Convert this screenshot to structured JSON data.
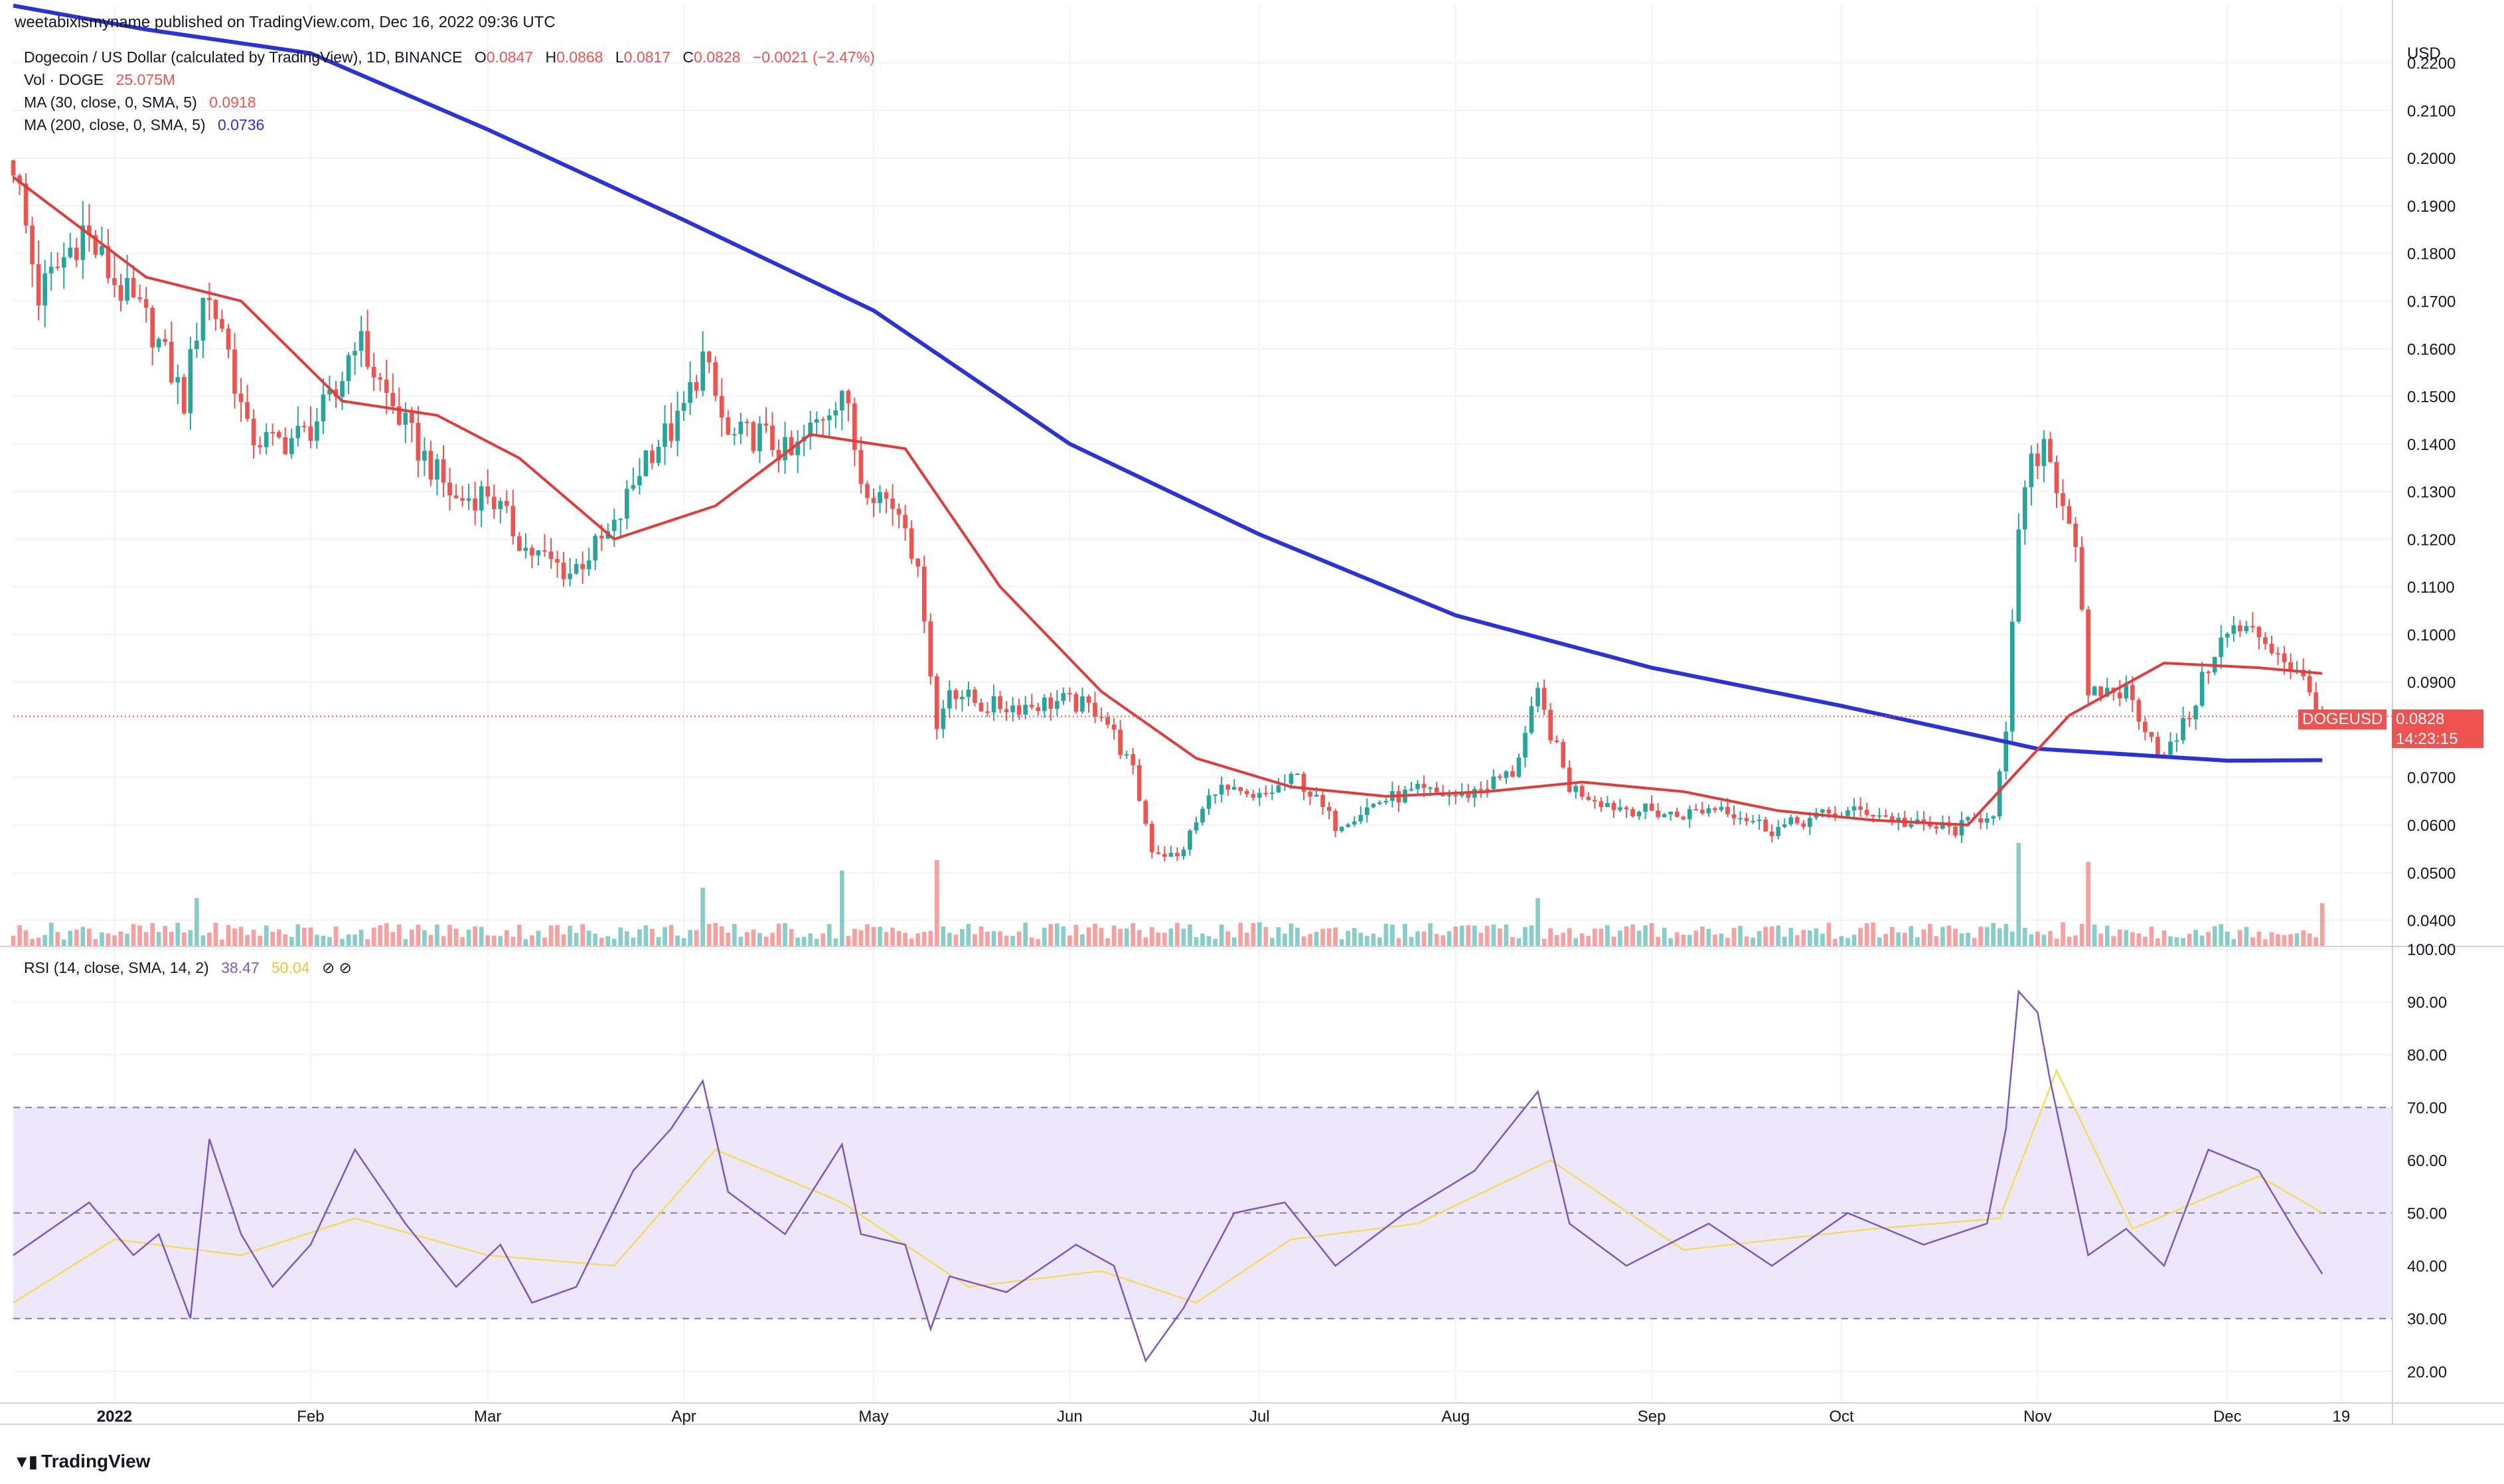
{
  "header": {
    "publish_line": "weetabixismyname published on TradingView.com, Dec 16, 2022 09:36 UTC",
    "symbol": "Dogecoin / US Dollar (calculated by TradingView), 1D, BINANCE",
    "ohlc": {
      "o_label": "O",
      "o": "0.0847",
      "h_label": "H",
      "h": "0.0868",
      "l_label": "L",
      "l": "0.0817",
      "c_label": "C",
      "c": "0.0828",
      "change": "−0.0021 (−2.47%)"
    },
    "vol_label": "Vol · DOGE",
    "vol_value": "25.075M",
    "ma30_label": "MA (30, close, 0, SMA, 5)",
    "ma30_value": "0.0918",
    "ma200_label": "MA (200, close, 0, SMA, 5)",
    "ma200_value": "0.0736",
    "rsi_label": "RSI (14, close, SMA, 14, 2)",
    "rsi_value": "38.47",
    "rsi_ma_value": "50.04",
    "rsi_icons": "⊘ ⊘"
  },
  "price_badges": {
    "ticker": "DOGEUSD",
    "last": "0.0828",
    "countdown": "14:23:15"
  },
  "currency": "USD",
  "brand": "TradingView",
  "colors": {
    "up": "#26a69a",
    "down": "#ef5350",
    "ma30": "#e03c3c",
    "ma200": "#2b33d6",
    "rsi": "#7e57c2",
    "rsi_ma": "#f5dc5a",
    "rsi_band": "#ede7fb"
  },
  "chart_data": [
    {
      "type": "candlestick",
      "title": "Dogecoin / US Dollar (calculated by TradingView), 1D, BINANCE",
      "x_ticks": [
        "2022",
        "Feb",
        "Mar",
        "Apr",
        "May",
        "Jun",
        "Jul",
        "Aug",
        "Sep",
        "Oct",
        "Nov",
        "Dec",
        "19"
      ],
      "y_ticks": [
        "0.2200",
        "0.2100",
        "0.2000",
        "0.1900",
        "0.1800",
        "0.1700",
        "0.1600",
        "0.1500",
        "0.1400",
        "0.1300",
        "0.1200",
        "0.1100",
        "0.1000",
        "0.0900",
        "0.0700",
        "0.0600",
        "0.0500",
        "0.0400"
      ],
      "ylim": [
        0.0345,
        0.2265
      ],
      "close_series": [
        {
          "date": "2021-12-16",
          "close": 0.1995
        },
        {
          "date": "2021-12-20",
          "close": 0.171
        },
        {
          "date": "2021-12-27",
          "close": 0.185
        },
        {
          "date": "2022-01-01",
          "close": 0.174
        },
        {
          "date": "2022-01-07",
          "close": 0.164
        },
        {
          "date": "2022-01-12",
          "close": 0.149
        },
        {
          "date": "2022-01-15",
          "close": 0.172
        },
        {
          "date": "2022-01-18",
          "close": 0.165
        },
        {
          "date": "2022-01-22",
          "close": 0.142
        },
        {
          "date": "2022-01-26",
          "close": 0.14
        },
        {
          "date": "2022-01-31",
          "close": 0.142
        },
        {
          "date": "2022-02-05",
          "close": 0.15
        },
        {
          "date": "2022-02-08",
          "close": 0.163
        },
        {
          "date": "2022-02-13",
          "close": 0.15
        },
        {
          "date": "2022-02-18",
          "close": 0.139
        },
        {
          "date": "2022-02-24",
          "close": 0.128
        },
        {
          "date": "2022-03-01",
          "close": 0.13
        },
        {
          "date": "2022-03-07",
          "close": 0.118
        },
        {
          "date": "2022-03-14",
          "close": 0.113
        },
        {
          "date": "2022-03-21",
          "close": 0.122
        },
        {
          "date": "2022-03-26",
          "close": 0.138
        },
        {
          "date": "2022-03-31",
          "close": 0.144
        },
        {
          "date": "2022-04-04",
          "close": 0.158
        },
        {
          "date": "2022-04-08",
          "close": 0.141
        },
        {
          "date": "2022-04-13",
          "close": 0.142
        },
        {
          "date": "2022-04-18",
          "close": 0.137
        },
        {
          "date": "2022-04-26",
          "close": 0.152
        },
        {
          "date": "2022-04-29",
          "close": 0.133
        },
        {
          "date": "2022-05-06",
          "close": 0.125
        },
        {
          "date": "2022-05-09",
          "close": 0.105
        },
        {
          "date": "2022-05-11",
          "close": 0.08
        },
        {
          "date": "2022-05-13",
          "close": 0.089
        },
        {
          "date": "2022-05-18",
          "close": 0.085
        },
        {
          "date": "2022-05-24",
          "close": 0.085
        },
        {
          "date": "2022-05-31",
          "close": 0.086
        },
        {
          "date": "2022-06-06",
          "close": 0.084
        },
        {
          "date": "2022-06-11",
          "close": 0.071
        },
        {
          "date": "2022-06-14",
          "close": 0.055
        },
        {
          "date": "2022-06-18",
          "close": 0.053
        },
        {
          "date": "2022-06-24",
          "close": 0.068
        },
        {
          "date": "2022-06-30",
          "close": 0.065
        },
        {
          "date": "2022-07-07",
          "close": 0.07
        },
        {
          "date": "2022-07-13",
          "close": 0.06
        },
        {
          "date": "2022-07-20",
          "close": 0.065
        },
        {
          "date": "2022-07-26",
          "close": 0.067
        },
        {
          "date": "2022-08-02",
          "close": 0.066
        },
        {
          "date": "2022-08-10",
          "close": 0.071
        },
        {
          "date": "2022-08-14",
          "close": 0.087
        },
        {
          "date": "2022-08-19",
          "close": 0.068
        },
        {
          "date": "2022-08-26",
          "close": 0.064
        },
        {
          "date": "2022-09-05",
          "close": 0.062
        },
        {
          "date": "2022-09-12",
          "close": 0.064
        },
        {
          "date": "2022-09-20",
          "close": 0.059
        },
        {
          "date": "2022-09-28",
          "close": 0.062
        },
        {
          "date": "2022-10-05",
          "close": 0.063
        },
        {
          "date": "2022-10-12",
          "close": 0.06
        },
        {
          "date": "2022-10-19",
          "close": 0.059
        },
        {
          "date": "2022-10-25",
          "close": 0.063
        },
        {
          "date": "2022-10-27",
          "close": 0.078
        },
        {
          "date": "2022-10-29",
          "close": 0.123
        },
        {
          "date": "2022-10-31",
          "close": 0.135
        },
        {
          "date": "2022-11-02",
          "close": 0.141
        },
        {
          "date": "2022-11-05",
          "close": 0.128
        },
        {
          "date": "2022-11-07",
          "close": 0.12
        },
        {
          "date": "2022-11-09",
          "close": 0.086
        },
        {
          "date": "2022-11-11",
          "close": 0.088
        },
        {
          "date": "2022-11-15",
          "close": 0.088
        },
        {
          "date": "2022-11-21",
          "close": 0.074
        },
        {
          "date": "2022-11-25",
          "close": 0.083
        },
        {
          "date": "2022-11-29",
          "close": 0.097
        },
        {
          "date": "2022-12-02",
          "close": 0.101
        },
        {
          "date": "2022-12-06",
          "close": 0.1
        },
        {
          "date": "2022-12-10",
          "close": 0.095
        },
        {
          "date": "2022-12-13",
          "close": 0.09
        },
        {
          "date": "2022-12-16",
          "close": 0.0828
        }
      ],
      "ma30": [
        {
          "date": "2021-12-16",
          "value": 0.196
        },
        {
          "date": "2022-01-06",
          "value": 0.175
        },
        {
          "date": "2022-01-21",
          "value": 0.17
        },
        {
          "date": "2022-02-06",
          "value": 0.149
        },
        {
          "date": "2022-02-21",
          "value": 0.146
        },
        {
          "date": "2022-03-06",
          "value": 0.137
        },
        {
          "date": "2022-03-21",
          "value": 0.12
        },
        {
          "date": "2022-04-06",
          "value": 0.127
        },
        {
          "date": "2022-04-21",
          "value": 0.142
        },
        {
          "date": "2022-05-06",
          "value": 0.139
        },
        {
          "date": "2022-05-21",
          "value": 0.11
        },
        {
          "date": "2022-06-06",
          "value": 0.088
        },
        {
          "date": "2022-06-21",
          "value": 0.074
        },
        {
          "date": "2022-07-06",
          "value": 0.068
        },
        {
          "date": "2022-07-21",
          "value": 0.066
        },
        {
          "date": "2022-08-06",
          "value": 0.067
        },
        {
          "date": "2022-08-21",
          "value": 0.069
        },
        {
          "date": "2022-09-06",
          "value": 0.067
        },
        {
          "date": "2022-09-21",
          "value": 0.063
        },
        {
          "date": "2022-10-06",
          "value": 0.061
        },
        {
          "date": "2022-10-21",
          "value": 0.06
        },
        {
          "date": "2022-11-06",
          "value": 0.083
        },
        {
          "date": "2022-11-21",
          "value": 0.094
        },
        {
          "date": "2022-12-06",
          "value": 0.093
        },
        {
          "date": "2022-12-16",
          "value": 0.0918
        }
      ],
      "ma200": [
        {
          "date": "2021-12-16",
          "value": 0.232
        },
        {
          "date": "2022-01-06",
          "value": 0.227
        },
        {
          "date": "2022-02-01",
          "value": 0.222
        },
        {
          "date": "2022-03-01",
          "value": 0.206
        },
        {
          "date": "2022-04-01",
          "value": 0.187
        },
        {
          "date": "2022-05-01",
          "value": 0.168
        },
        {
          "date": "2022-06-01",
          "value": 0.14
        },
        {
          "date": "2022-07-01",
          "value": 0.121
        },
        {
          "date": "2022-08-01",
          "value": 0.104
        },
        {
          "date": "2022-09-01",
          "value": 0.093
        },
        {
          "date": "2022-10-01",
          "value": 0.085
        },
        {
          "date": "2022-11-01",
          "value": 0.076
        },
        {
          "date": "2022-12-01",
          "value": 0.0735
        },
        {
          "date": "2022-12-16",
          "value": 0.0736
        }
      ],
      "volume_M_approx": [
        {
          "date": "2022-01-14",
          "value": 28
        },
        {
          "date": "2022-04-04",
          "value": 34
        },
        {
          "date": "2022-04-26",
          "value": 44
        },
        {
          "date": "2022-05-11",
          "value": 50
        },
        {
          "date": "2022-08-14",
          "value": 28
        },
        {
          "date": "2022-10-29",
          "value": 60
        },
        {
          "date": "2022-11-09",
          "value": 49
        },
        {
          "date": "2022-12-16",
          "value": 25.075
        }
      ]
    },
    {
      "type": "line",
      "title": "RSI (14, close, SMA, 14, 2)",
      "y_ticks": [
        "100.00",
        "90.00",
        "80.00",
        "70.00",
        "60.00",
        "50.00",
        "40.00",
        "30.00",
        "20.00"
      ],
      "ylim": [
        14,
        100
      ],
      "bands": [
        30,
        50,
        70
      ],
      "series": [
        {
          "name": "RSI",
          "points": [
            {
              "date": "2021-12-16",
              "value": 42
            },
            {
              "date": "2021-12-28",
              "value": 52
            },
            {
              "date": "2022-01-04",
              "value": 42
            },
            {
              "date": "2022-01-08",
              "value": 46
            },
            {
              "date": "2022-01-13",
              "value": 30
            },
            {
              "date": "2022-01-16",
              "value": 64
            },
            {
              "date": "2022-01-21",
              "value": 46
            },
            {
              "date": "2022-01-26",
              "value": 36
            },
            {
              "date": "2022-02-01",
              "value": 44
            },
            {
              "date": "2022-02-08",
              "value": 62
            },
            {
              "date": "2022-02-16",
              "value": 48
            },
            {
              "date": "2022-02-24",
              "value": 36
            },
            {
              "date": "2022-03-03",
              "value": 44
            },
            {
              "date": "2022-03-08",
              "value": 33
            },
            {
              "date": "2022-03-15",
              "value": 36
            },
            {
              "date": "2022-03-24",
              "value": 58
            },
            {
              "date": "2022-03-30",
              "value": 66
            },
            {
              "date": "2022-04-04",
              "value": 75
            },
            {
              "date": "2022-04-08",
              "value": 54
            },
            {
              "date": "2022-04-17",
              "value": 46
            },
            {
              "date": "2022-04-26",
              "value": 63
            },
            {
              "date": "2022-04-29",
              "value": 46
            },
            {
              "date": "2022-05-06",
              "value": 44
            },
            {
              "date": "2022-05-10",
              "value": 28
            },
            {
              "date": "2022-05-13",
              "value": 38
            },
            {
              "date": "2022-05-22",
              "value": 35
            },
            {
              "date": "2022-06-02",
              "value": 44
            },
            {
              "date": "2022-06-08",
              "value": 40
            },
            {
              "date": "2022-06-13",
              "value": 22
            },
            {
              "date": "2022-06-19",
              "value": 32
            },
            {
              "date": "2022-06-27",
              "value": 50
            },
            {
              "date": "2022-07-05",
              "value": 52
            },
            {
              "date": "2022-07-13",
              "value": 40
            },
            {
              "date": "2022-07-24",
              "value": 50
            },
            {
              "date": "2022-08-04",
              "value": 58
            },
            {
              "date": "2022-08-14",
              "value": 73
            },
            {
              "date": "2022-08-19",
              "value": 48
            },
            {
              "date": "2022-08-28",
              "value": 40
            },
            {
              "date": "2022-09-10",
              "value": 48
            },
            {
              "date": "2022-09-20",
              "value": 40
            },
            {
              "date": "2022-10-02",
              "value": 50
            },
            {
              "date": "2022-10-14",
              "value": 44
            },
            {
              "date": "2022-10-24",
              "value": 48
            },
            {
              "date": "2022-10-27",
              "value": 66
            },
            {
              "date": "2022-10-29",
              "value": 92
            },
            {
              "date": "2022-11-01",
              "value": 88
            },
            {
              "date": "2022-11-03",
              "value": 75
            },
            {
              "date": "2022-11-09",
              "value": 42
            },
            {
              "date": "2022-11-15",
              "value": 47
            },
            {
              "date": "2022-11-21",
              "value": 40
            },
            {
              "date": "2022-11-28",
              "value": 62
            },
            {
              "date": "2022-12-06",
              "value": 58
            },
            {
              "date": "2022-12-12",
              "value": 46
            },
            {
              "date": "2022-12-16",
              "value": 38.47
            }
          ]
        },
        {
          "name": "RSI-based MA",
          "points": [
            {
              "date": "2021-12-16",
              "value": 33
            },
            {
              "date": "2022-01-01",
              "value": 45
            },
            {
              "date": "2022-01-21",
              "value": 42
            },
            {
              "date": "2022-02-08",
              "value": 49
            },
            {
              "date": "2022-03-01",
              "value": 42
            },
            {
              "date": "2022-03-21",
              "value": 40
            },
            {
              "date": "2022-04-06",
              "value": 62
            },
            {
              "date": "2022-04-26",
              "value": 52
            },
            {
              "date": "2022-05-16",
              "value": 36
            },
            {
              "date": "2022-06-06",
              "value": 39
            },
            {
              "date": "2022-06-21",
              "value": 33
            },
            {
              "date": "2022-07-06",
              "value": 45
            },
            {
              "date": "2022-07-26",
              "value": 48
            },
            {
              "date": "2022-08-16",
              "value": 60
            },
            {
              "date": "2022-09-06",
              "value": 43
            },
            {
              "date": "2022-10-06",
              "value": 47
            },
            {
              "date": "2022-10-26",
              "value": 49
            },
            {
              "date": "2022-11-04",
              "value": 77
            },
            {
              "date": "2022-11-16",
              "value": 47
            },
            {
              "date": "2022-12-06",
              "value": 57
            },
            {
              "date": "2022-12-16",
              "value": 50.04
            }
          ]
        }
      ]
    }
  ]
}
